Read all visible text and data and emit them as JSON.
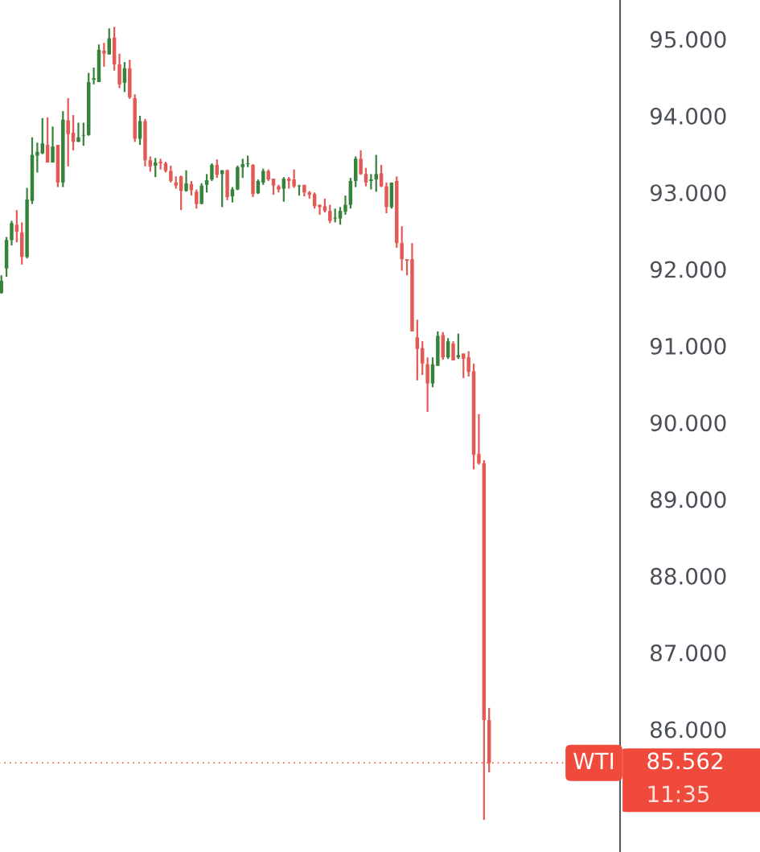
{
  "chart_data": {
    "type": "candlestick",
    "categories": [
      null,
      null,
      null,
      null,
      null,
      null,
      null,
      null,
      null,
      null,
      null,
      null,
      null,
      null,
      null,
      null,
      null,
      null,
      null,
      null,
      null,
      null,
      null,
      null,
      null,
      null,
      null,
      null,
      null,
      null,
      null,
      null,
      null,
      null,
      null,
      null,
      null,
      null,
      null,
      null,
      null,
      null,
      null,
      null,
      null,
      null,
      null,
      null,
      null,
      null,
      null,
      null,
      null,
      null,
      null,
      null,
      null,
      null,
      null,
      null,
      null,
      null,
      null,
      null,
      null,
      null,
      null,
      null,
      null,
      null,
      null,
      null,
      null,
      null,
      null,
      null,
      null,
      null,
      null,
      null,
      null,
      null,
      null,
      null,
      null,
      null,
      null,
      null,
      null,
      null,
      null,
      null,
      null,
      null,
      null,
      null,
      null,
      null,
      null,
      null,
      null,
      null,
      null,
      null,
      null,
      null,
      null,
      null,
      null,
      null,
      null,
      null,
      null,
      null,
      null,
      null,
      null,
      null,
      null,
      null,
      null
    ],
    "ohlc": [
      [
        91.69,
        91.92,
        91.68,
        91.85
      ],
      [
        92.01,
        92.42,
        91.9,
        92.38
      ],
      [
        92.38,
        92.63,
        92.31,
        92.6
      ],
      [
        92.58,
        92.77,
        92.35,
        92.49
      ],
      [
        92.48,
        92.61,
        92.06,
        92.16
      ],
      [
        92.16,
        93.06,
        92.14,
        92.91
      ],
      [
        92.89,
        93.72,
        92.85,
        93.49
      ],
      [
        93.48,
        93.65,
        93.26,
        93.53
      ],
      [
        93.51,
        93.97,
        93.5,
        93.64
      ],
      [
        93.62,
        93.98,
        93.39,
        93.39
      ],
      [
        93.39,
        93.86,
        93.39,
        93.6
      ],
      [
        93.62,
        93.62,
        93.07,
        93.13
      ],
      [
        93.13,
        94.06,
        93.07,
        93.95
      ],
      [
        93.94,
        94.23,
        93.34,
        93.76
      ],
      [
        93.78,
        94.01,
        93.55,
        93.66
      ],
      [
        93.66,
        93.91,
        93.66,
        93.72
      ],
      [
        93.74,
        93.91,
        93.61,
        93.75
      ],
      [
        93.75,
        94.56,
        93.74,
        94.44
      ],
      [
        94.47,
        94.63,
        94.41,
        94.49
      ],
      [
        94.44,
        94.93,
        94.44,
        94.86
      ],
      [
        94.85,
        94.95,
        94.64,
        94.81
      ],
      [
        94.8,
        95.14,
        94.8,
        95.01
      ],
      [
        95.02,
        95.16,
        94.59,
        94.67
      ],
      [
        94.67,
        94.81,
        94.36,
        94.41
      ],
      [
        94.43,
        94.7,
        94.31,
        94.62
      ],
      [
        94.62,
        94.73,
        94.22,
        94.24
      ],
      [
        94.23,
        94.28,
        93.66,
        93.7
      ],
      [
        93.7,
        94.0,
        93.62,
        93.93
      ],
      [
        93.93,
        93.96,
        93.34,
        93.42
      ],
      [
        93.42,
        93.47,
        93.27,
        93.34
      ],
      [
        93.35,
        93.45,
        93.2,
        93.39
      ],
      [
        93.4,
        93.44,
        93.3,
        93.38
      ],
      [
        93.38,
        93.4,
        93.26,
        93.28
      ],
      [
        93.28,
        93.35,
        93.13,
        93.15
      ],
      [
        93.13,
        93.21,
        93.05,
        93.09
      ],
      [
        93.21,
        93.22,
        92.77,
        93.02
      ],
      [
        93.02,
        93.29,
        93.01,
        93.12
      ],
      [
        93.11,
        93.15,
        92.96,
        93.03
      ],
      [
        93.01,
        93.04,
        92.79,
        92.85
      ],
      [
        92.85,
        93.12,
        92.85,
        93.09
      ],
      [
        93.1,
        93.24,
        93.0,
        93.16
      ],
      [
        93.17,
        93.38,
        93.15,
        93.36
      ],
      [
        93.36,
        93.43,
        93.19,
        93.23
      ],
      [
        93.24,
        93.29,
        92.81,
        93.29
      ],
      [
        93.29,
        93.3,
        92.9,
        92.94
      ],
      [
        92.95,
        93.07,
        92.87,
        93.04
      ],
      [
        93.04,
        93.35,
        93.03,
        93.33
      ],
      [
        93.33,
        93.44,
        93.19,
        93.37
      ],
      [
        93.37,
        93.48,
        93.33,
        93.38
      ],
      [
        93.36,
        93.37,
        92.94,
        92.98
      ],
      [
        92.99,
        93.17,
        92.98,
        93.15
      ],
      [
        93.13,
        93.31,
        93.1,
        93.28
      ],
      [
        93.28,
        93.3,
        93.15,
        93.17
      ],
      [
        93.18,
        93.18,
        92.97,
        93.09
      ],
      [
        93.08,
        93.1,
        93.0,
        93.04
      ],
      [
        93.05,
        93.2,
        92.88,
        93.18
      ],
      [
        93.18,
        93.2,
        93.05,
        93.15
      ],
      [
        93.17,
        93.3,
        93.06,
        93.08
      ],
      [
        93.08,
        93.1,
        92.96,
        93.09
      ],
      [
        93.1,
        93.1,
        92.95,
        93.0
      ],
      [
        93.0,
        93.02,
        92.92,
        92.97
      ],
      [
        92.98,
        93.0,
        92.79,
        92.82
      ],
      [
        92.84,
        92.84,
        92.71,
        92.81
      ],
      [
        92.82,
        92.92,
        92.74,
        92.76
      ],
      [
        92.76,
        92.84,
        92.6,
        92.63
      ],
      [
        92.66,
        92.79,
        92.61,
        92.67
      ],
      [
        92.66,
        92.81,
        92.58,
        92.76
      ],
      [
        92.75,
        92.96,
        92.71,
        92.84
      ],
      [
        92.84,
        93.19,
        92.79,
        93.15
      ],
      [
        93.15,
        93.47,
        93.07,
        93.44
      ],
      [
        93.44,
        93.55,
        93.23,
        93.24
      ],
      [
        93.24,
        93.32,
        93.08,
        93.13
      ],
      [
        93.15,
        93.24,
        93.04,
        93.17
      ],
      [
        93.17,
        93.49,
        93.01,
        93.24
      ],
      [
        93.25,
        93.36,
        93.07,
        93.08
      ],
      [
        93.08,
        93.13,
        92.73,
        92.81
      ],
      [
        92.81,
        93.13,
        92.79,
        93.13
      ],
      [
        93.15,
        93.21,
        92.28,
        92.34
      ],
      [
        92.34,
        92.56,
        91.98,
        92.13
      ],
      [
        92.13,
        92.13,
        91.92,
        92.11
      ],
      [
        92.13,
        92.34,
        91.19,
        91.19
      ],
      [
        91.11,
        91.34,
        90.55,
        90.96
      ],
      [
        90.97,
        91.06,
        90.62,
        90.77
      ],
      [
        90.76,
        90.85,
        90.14,
        90.51
      ],
      [
        90.51,
        90.85,
        90.46,
        90.76
      ],
      [
        90.74,
        91.19,
        90.74,
        91.13
      ],
      [
        91.14,
        91.18,
        90.82,
        90.85
      ],
      [
        90.85,
        91.1,
        90.83,
        91.06
      ],
      [
        91.03,
        91.06,
        90.81,
        90.81
      ],
      [
        90.85,
        91.16,
        90.83,
        90.88
      ],
      [
        90.9,
        90.9,
        90.58,
        90.83
      ],
      [
        90.85,
        90.93,
        90.6,
        90.66
      ],
      [
        90.67,
        90.77,
        89.39,
        89.58
      ],
      [
        89.59,
        90.11,
        89.45,
        89.47
      ],
      [
        89.47,
        89.51,
        84.82,
        86.12
      ],
      [
        86.12,
        86.28,
        85.44,
        85.562
      ],
      null,
      null,
      null,
      null,
      null,
      null,
      null,
      null,
      null,
      null,
      null,
      null,
      null,
      null,
      null,
      null,
      null,
      null,
      null,
      null,
      null,
      null,
      null,
      null,
      null
    ],
    "colors": [
      "#37833b",
      "#37833b",
      "#37833b",
      "#e35a55",
      "#e35a55",
      "#37833b",
      "#37833b",
      "#37833b",
      "#37833b",
      "#e35a55",
      "#37833b",
      "#e35a55",
      "#37833b",
      "#e35a55",
      "#e35a55",
      "#37833b",
      "#37833b",
      "#37833b",
      "#37833b",
      "#37833b",
      "#e35a55",
      "#37833b",
      "#e35a55",
      "#e35a55",
      "#37833b",
      "#e35a55",
      "#e35a55",
      "#37833b",
      "#e35a55",
      "#e35a55",
      "#37833b",
      "#e35a55",
      "#e35a55",
      "#e35a55",
      "#e35a55",
      "#e35a55",
      "#37833b",
      "#e35a55",
      "#e35a55",
      "#37833b",
      "#37833b",
      "#37833b",
      "#e35a55",
      "#37833b",
      "#e35a55",
      "#37833b",
      "#37833b",
      "#37833b",
      "#37833b",
      "#e35a55",
      "#37833b",
      "#37833b",
      "#e35a55",
      "#e35a55",
      "#e35a55",
      "#37833b",
      "#e35a55",
      "#e35a55",
      "#37833b",
      "#e35a55",
      "#e35a55",
      "#e35a55",
      "#e35a55",
      "#e35a55",
      "#e35a55",
      "#37833b",
      "#37833b",
      "#37833b",
      "#37833b",
      "#37833b",
      "#e35a55",
      "#e35a55",
      "#37833b",
      "#37833b",
      "#e35a55",
      "#e35a55",
      "#37833b",
      "#e35a55",
      "#e35a55",
      "#e35a55",
      "#e35a55",
      "#e35a55",
      "#e35a55",
      "#e35a55",
      "#37833b",
      "#37833b",
      "#e35a55",
      "#37833b",
      "#e35a55",
      "#37833b",
      "#e35a55",
      "#e35a55",
      "#e35a55",
      "#e35a55",
      "#e35a55",
      "#e35a55",
      null,
      null,
      null,
      null,
      null,
      null,
      null,
      null,
      null,
      null,
      null,
      null,
      null,
      null,
      null,
      null,
      null,
      null,
      null,
      null,
      null,
      null,
      null,
      null,
      null
    ],
    "ylim": [
      84.4,
      95.51
    ],
    "yticks": [
      {
        "value": 86,
        "label": "86.000"
      },
      {
        "value": 87,
        "label": "87.000"
      },
      {
        "value": 88,
        "label": "88.000"
      },
      {
        "value": 89,
        "label": "89.000"
      },
      {
        "value": 90,
        "label": "90.000"
      },
      {
        "value": 91,
        "label": "91.000"
      },
      {
        "value": 92,
        "label": "92.000"
      },
      {
        "value": 93,
        "label": "93.000"
      },
      {
        "value": 94,
        "label": "94.000"
      },
      {
        "value": 95,
        "label": "95.000"
      }
    ],
    "tick_labels": "y",
    "grid": false,
    "ref_lines": [
      {
        "axis": "y",
        "value": 85.562,
        "label": "WTI",
        "color": "#ef4a3c",
        "line_style": "dotted"
      }
    ],
    "annotations": [
      "85.562",
      "11:35"
    ]
  }
}
